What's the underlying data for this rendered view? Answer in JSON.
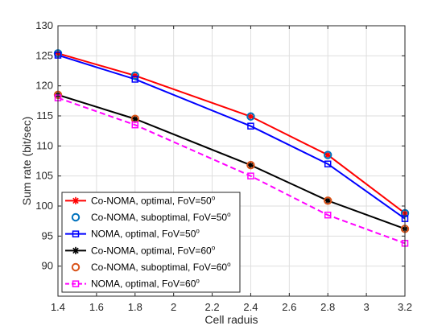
{
  "chart_data": {
    "type": "line",
    "xlabel": "Cell raduis",
    "ylabel": "Sum rate (bit/sec)",
    "xlim": [
      1.4,
      3.2
    ],
    "ylim": [
      85,
      130
    ],
    "xticks": [
      1.4,
      1.6,
      1.8,
      2,
      2.2,
      2.4,
      2.6,
      2.8,
      3,
      3.2
    ],
    "xtick_labels": [
      "1.4",
      "1.6",
      "1.8",
      "2",
      "2.2",
      "2.4",
      "2.6",
      "2.8",
      "3",
      "3.2"
    ],
    "yticks": [
      90,
      95,
      100,
      105,
      110,
      115,
      120,
      125,
      130
    ],
    "ytick_labels": [
      "90",
      "95",
      "100",
      "105",
      "110",
      "115",
      "120",
      "125",
      "130"
    ],
    "grid": true,
    "legend_position": "bottom-left",
    "x": [
      1.4,
      1.8,
      2.4,
      2.8,
      3.2
    ],
    "series": [
      {
        "name": "Co-NOMA, optimal, FoV=50",
        "sup": "o",
        "values": [
          125.4,
          121.7,
          114.9,
          108.5,
          98.8
        ],
        "color": "#ff0000",
        "marker": "asterisk",
        "line": "solid",
        "width": 2
      },
      {
        "name": "Co-NOMA, suboptimal, FoV=50",
        "sup": "o",
        "values": [
          125.4,
          121.7,
          114.9,
          108.5,
          98.8
        ],
        "color": "#0072bd",
        "marker": "circle",
        "line": "none",
        "width": 2
      },
      {
        "name": "NOMA, optimal, FoV=50",
        "sup": "o",
        "values": [
          125.1,
          121.1,
          113.3,
          107.0,
          97.9
        ],
        "color": "#0000ff",
        "marker": "square",
        "line": "solid",
        "width": 2
      },
      {
        "name": "Co-NOMA, optimal, FoV=60",
        "sup": "o",
        "values": [
          118.5,
          114.5,
          106.8,
          100.9,
          96.2
        ],
        "color": "#000000",
        "marker": "asterisk",
        "line": "solid",
        "width": 2
      },
      {
        "name": "Co-NOMA, suboptimal, FoV=60",
        "sup": "o",
        "values": [
          118.5,
          114.5,
          106.8,
          100.9,
          96.2
        ],
        "color": "#d95319",
        "marker": "circle",
        "line": "none",
        "width": 2
      },
      {
        "name": "NOMA, optimal, FoV=60",
        "sup": "o",
        "values": [
          118.0,
          113.5,
          105.0,
          98.5,
          93.8
        ],
        "color": "#ff00ff",
        "marker": "square",
        "line": "dashed",
        "width": 2
      }
    ]
  }
}
